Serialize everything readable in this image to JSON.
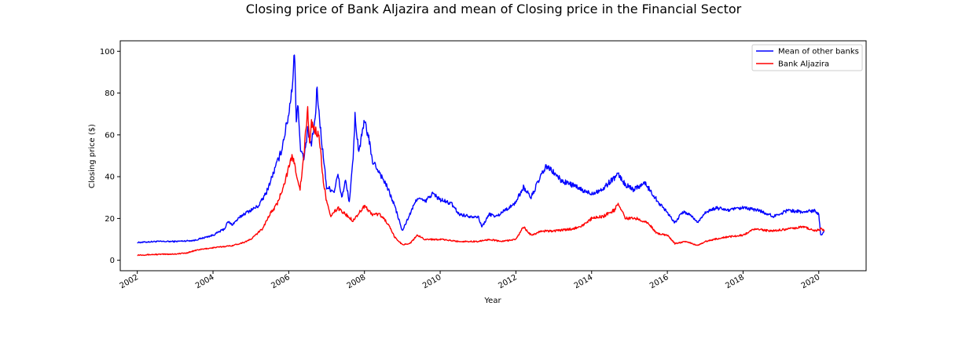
{
  "chart_data": {
    "type": "line",
    "title": "Closing price of Bank Aljazira and mean of Closing price in the Financial Sector",
    "xlabel": "Year",
    "ylabel": "Closing price ($)",
    "xlim": [
      2001.55,
      2021.25
    ],
    "ylim": [
      -5,
      105
    ],
    "xticks": [
      "2002",
      "2004",
      "2006",
      "2008",
      "2010",
      "2012",
      "2014",
      "2016",
      "2018",
      "2020"
    ],
    "yticks": [
      "0",
      "20",
      "40",
      "60",
      "80",
      "100"
    ],
    "grid": false,
    "legend_position": "upper right",
    "series": [
      {
        "name": "Mean of other banks",
        "color": "#0000ff",
        "points": [
          [
            2002.0,
            8.5
          ],
          [
            2002.5,
            9.0
          ],
          [
            2003.0,
            9.0
          ],
          [
            2003.5,
            9.5
          ],
          [
            2003.8,
            11.0
          ],
          [
            2004.0,
            12.0
          ],
          [
            2004.3,
            15.0
          ],
          [
            2004.4,
            18.5
          ],
          [
            2004.5,
            17.0
          ],
          [
            2004.8,
            22.0
          ],
          [
            2005.0,
            24.0
          ],
          [
            2005.2,
            26.0
          ],
          [
            2005.4,
            32.0
          ],
          [
            2005.6,
            42.0
          ],
          [
            2005.8,
            52.0
          ],
          [
            2006.0,
            70.0
          ],
          [
            2006.1,
            85.0
          ],
          [
            2006.15,
            100.0
          ],
          [
            2006.2,
            68.0
          ],
          [
            2006.25,
            75.0
          ],
          [
            2006.3,
            55.0
          ],
          [
            2006.4,
            48.0
          ],
          [
            2006.5,
            62.0
          ],
          [
            2006.6,
            55.0
          ],
          [
            2006.7,
            68.0
          ],
          [
            2006.75,
            83.0
          ],
          [
            2006.8,
            70.0
          ],
          [
            2006.9,
            52.0
          ],
          [
            2007.0,
            35.0
          ],
          [
            2007.2,
            33.0
          ],
          [
            2007.3,
            41.0
          ],
          [
            2007.4,
            30.0
          ],
          [
            2007.5,
            38.0
          ],
          [
            2007.6,
            28.0
          ],
          [
            2007.7,
            48.0
          ],
          [
            2007.75,
            69.0
          ],
          [
            2007.85,
            52.0
          ],
          [
            2008.0,
            66.0
          ],
          [
            2008.1,
            60.0
          ],
          [
            2008.2,
            48.0
          ],
          [
            2008.4,
            42.0
          ],
          [
            2008.6,
            35.0
          ],
          [
            2008.8,
            26.0
          ],
          [
            2009.0,
            14.0
          ],
          [
            2009.2,
            22.0
          ],
          [
            2009.4,
            30.0
          ],
          [
            2009.6,
            28.0
          ],
          [
            2009.8,
            32.0
          ],
          [
            2010.0,
            29.0
          ],
          [
            2010.3,
            27.0
          ],
          [
            2010.5,
            22.0
          ],
          [
            2010.8,
            21.0
          ],
          [
            2011.0,
            21.0
          ],
          [
            2011.1,
            16.0
          ],
          [
            2011.3,
            22.0
          ],
          [
            2011.5,
            21.0
          ],
          [
            2011.7,
            24.0
          ],
          [
            2011.9,
            26.0
          ],
          [
            2012.0,
            28.0
          ],
          [
            2012.2,
            35.0
          ],
          [
            2012.4,
            30.0
          ],
          [
            2012.6,
            38.0
          ],
          [
            2012.8,
            45.0
          ],
          [
            2013.0,
            42.0
          ],
          [
            2013.2,
            38.0
          ],
          [
            2013.5,
            36.0
          ],
          [
            2013.8,
            33.0
          ],
          [
            2014.0,
            32.0
          ],
          [
            2014.3,
            34.0
          ],
          [
            2014.5,
            38.0
          ],
          [
            2014.7,
            41.0
          ],
          [
            2014.9,
            36.0
          ],
          [
            2015.1,
            34.0
          ],
          [
            2015.4,
            37.0
          ],
          [
            2015.6,
            32.0
          ],
          [
            2015.8,
            27.0
          ],
          [
            2016.0,
            23.0
          ],
          [
            2016.2,
            18.0
          ],
          [
            2016.4,
            23.0
          ],
          [
            2016.6,
            22.0
          ],
          [
            2016.8,
            18.0
          ],
          [
            2017.0,
            23.0
          ],
          [
            2017.3,
            25.0
          ],
          [
            2017.6,
            24.0
          ],
          [
            2018.0,
            25.0
          ],
          [
            2018.4,
            24.0
          ],
          [
            2018.8,
            21.0
          ],
          [
            2019.2,
            24.0
          ],
          [
            2019.6,
            23.0
          ],
          [
            2019.9,
            24.0
          ],
          [
            2020.0,
            22.0
          ],
          [
            2020.05,
            12.0
          ],
          [
            2020.15,
            14.0
          ]
        ]
      },
      {
        "name": "Bank Aljazira",
        "color": "#ff0000",
        "points": [
          [
            2002.0,
            2.5
          ],
          [
            2002.5,
            2.8
          ],
          [
            2003.0,
            3.0
          ],
          [
            2003.3,
            3.5
          ],
          [
            2003.6,
            5.0
          ],
          [
            2004.0,
            6.0
          ],
          [
            2004.5,
            7.0
          ],
          [
            2004.8,
            8.5
          ],
          [
            2005.0,
            10.0
          ],
          [
            2005.3,
            15.0
          ],
          [
            2005.5,
            22.0
          ],
          [
            2005.7,
            27.0
          ],
          [
            2005.9,
            38.0
          ],
          [
            2006.1,
            50.0
          ],
          [
            2006.2,
            42.0
          ],
          [
            2006.3,
            34.0
          ],
          [
            2006.4,
            50.0
          ],
          [
            2006.5,
            73.0
          ],
          [
            2006.55,
            55.0
          ],
          [
            2006.6,
            66.0
          ],
          [
            2006.7,
            62.0
          ],
          [
            2006.8,
            60.0
          ],
          [
            2006.9,
            40.0
          ],
          [
            2007.0,
            28.0
          ],
          [
            2007.1,
            21.0
          ],
          [
            2007.3,
            25.0
          ],
          [
            2007.5,
            22.0
          ],
          [
            2007.7,
            19.0
          ],
          [
            2008.0,
            26.0
          ],
          [
            2008.2,
            22.0
          ],
          [
            2008.4,
            22.0
          ],
          [
            2008.6,
            18.0
          ],
          [
            2008.8,
            11.0
          ],
          [
            2009.0,
            7.5
          ],
          [
            2009.2,
            8.0
          ],
          [
            2009.4,
            12.0
          ],
          [
            2009.6,
            10.0
          ],
          [
            2010.0,
            10.0
          ],
          [
            2010.5,
            9.0
          ],
          [
            2011.0,
            9.0
          ],
          [
            2011.3,
            10.0
          ],
          [
            2011.6,
            9.0
          ],
          [
            2012.0,
            10.0
          ],
          [
            2012.2,
            16.0
          ],
          [
            2012.4,
            12.0
          ],
          [
            2012.7,
            14.0
          ],
          [
            2013.0,
            14.0
          ],
          [
            2013.5,
            15.0
          ],
          [
            2013.8,
            17.0
          ],
          [
            2014.0,
            20.0
          ],
          [
            2014.3,
            21.0
          ],
          [
            2014.6,
            24.0
          ],
          [
            2014.7,
            27.0
          ],
          [
            2014.9,
            20.0
          ],
          [
            2015.2,
            20.0
          ],
          [
            2015.5,
            18.0
          ],
          [
            2015.7,
            13.0
          ],
          [
            2016.0,
            12.0
          ],
          [
            2016.2,
            8.0
          ],
          [
            2016.5,
            9.0
          ],
          [
            2016.8,
            7.0
          ],
          [
            2017.0,
            9.0
          ],
          [
            2017.5,
            11.0
          ],
          [
            2018.0,
            12.0
          ],
          [
            2018.3,
            15.0
          ],
          [
            2018.7,
            14.0
          ],
          [
            2019.2,
            15.0
          ],
          [
            2019.6,
            16.0
          ],
          [
            2019.9,
            14.0
          ],
          [
            2020.05,
            15.0
          ],
          [
            2020.15,
            14.0
          ]
        ]
      }
    ]
  }
}
